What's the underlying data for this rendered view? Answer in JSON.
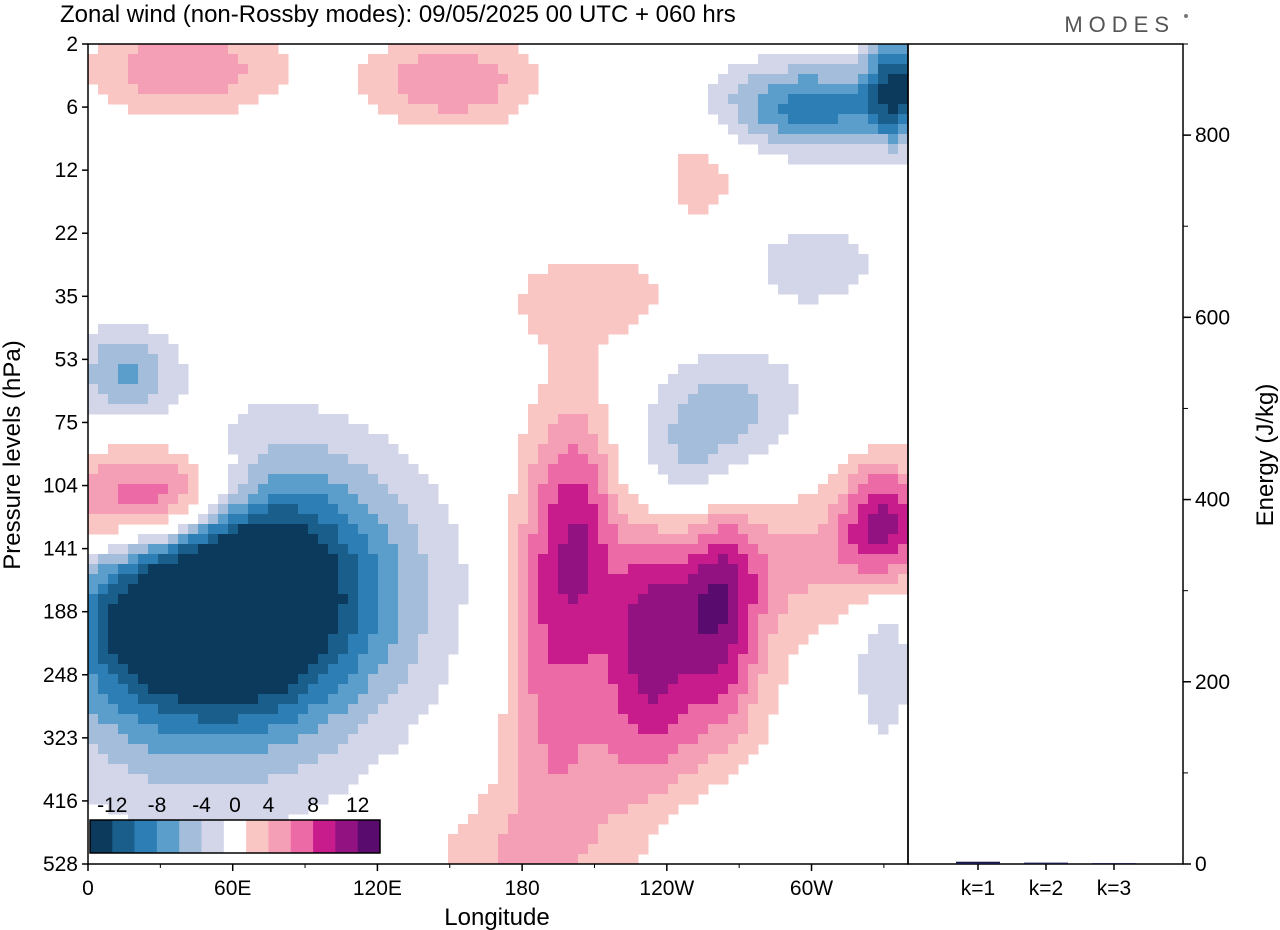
{
  "header": {
    "title": "Zonal wind (non-Rossby modes):  09/05/2025  00 UTC  + 060 hrs",
    "logo": "MODES"
  },
  "chart_data": [
    {
      "type": "heatmap",
      "title": "Zonal wind (non-Rossby modes):  09/05/2025  00 UTC  + 060 hrs",
      "xlabel": "Longitude",
      "ylabel": "Pressure levels (hPa)",
      "x_ticks": [
        "0",
        "60E",
        "120E",
        "180",
        "120W",
        "60W"
      ],
      "x_tick_lon": [
        0,
        60,
        120,
        180,
        240,
        300
      ],
      "xlim": [
        0,
        340
      ],
      "y_ticks": [
        "2",
        "6",
        "12",
        "22",
        "35",
        "53",
        "75",
        "104",
        "141",
        "188",
        "248",
        "323",
        "416",
        "528"
      ],
      "y_scale": "model levels (pressure decreasing upward)",
      "colorbar": {
        "tick_labels": [
          "-12",
          "-8",
          "-4",
          "0",
          "4",
          "8",
          "12"
        ],
        "tick_values": [
          -12,
          -8,
          -4,
          0,
          4,
          8,
          12
        ],
        "boundaries": [
          -14,
          -12,
          -10,
          -8,
          -6,
          -4,
          -2,
          2,
          4,
          6,
          8,
          10,
          12,
          14
        ],
        "colors": [
          "#0b3a5c",
          "#1a5f8c",
          "#2e7eb6",
          "#5b9dcb",
          "#a3bddb",
          "#d3d6e8",
          "#ffffff",
          "#f9c6c3",
          "#f59fb6",
          "#ec6aa6",
          "#c81b8c",
          "#921282",
          "#5a0b6e"
        ]
      },
      "fields": [
        {
          "lon": 80,
          "level": 8.6,
          "value": -12,
          "sx": 40,
          "sy": 1.5
        },
        {
          "lon": 60,
          "level": 8.8,
          "value": -10,
          "sx": 22,
          "sy": 1.0
        },
        {
          "lon": 20,
          "level": 9.0,
          "value": -8,
          "sx": 25,
          "sy": 1.2
        },
        {
          "lon": 45,
          "level": 10.2,
          "value": -4,
          "sx": 45,
          "sy": 1.8
        },
        {
          "lon": 15,
          "level": 5.2,
          "value": -6,
          "sx": 15,
          "sy": 0.5
        },
        {
          "lon": 15,
          "level": 7.4,
          "value": 9,
          "sx": 30,
          "sy": 0.7
        },
        {
          "lon": 40,
          "level": 7.2,
          "value": 7,
          "sx": 20,
          "sy": 0.6
        },
        {
          "lon": 205,
          "level": 7.8,
          "value": 8,
          "sx": 10,
          "sy": 1.5
        },
        {
          "lon": 188,
          "level": 8.5,
          "value": 6,
          "sx": 10,
          "sy": 1.8
        },
        {
          "lon": 198,
          "level": 11.5,
          "value": 4,
          "sx": 20,
          "sy": 1.5
        },
        {
          "lon": 232,
          "level": 9.2,
          "value": 7,
          "sx": 12,
          "sy": 1.5
        },
        {
          "lon": 262,
          "level": 8.8,
          "value": 8,
          "sx": 12,
          "sy": 1.2
        },
        {
          "lon": 248,
          "level": 10.0,
          "value": 5,
          "sx": 25,
          "sy": 2.0
        },
        {
          "lon": 330,
          "level": 7.6,
          "value": 10,
          "sx": 12,
          "sy": 0.7
        },
        {
          "lon": 305,
          "level": 8.2,
          "value": 4,
          "sx": 30,
          "sy": 0.8
        },
        {
          "lon": 248,
          "level": 6.8,
          "value": -6,
          "sx": 18,
          "sy": 0.9
        },
        {
          "lon": 270,
          "level": 5.7,
          "value": -4,
          "sx": 20,
          "sy": 0.7
        },
        {
          "lon": 300,
          "level": 1.0,
          "value": -9,
          "sx": 30,
          "sy": 0.5
        },
        {
          "lon": 335,
          "level": 0.6,
          "value": -10,
          "sx": 8,
          "sy": 0.6
        },
        {
          "lon": 150,
          "level": 0.6,
          "value": 6,
          "sx": 25,
          "sy": 0.5
        },
        {
          "lon": 40,
          "level": 0.4,
          "value": 6,
          "sx": 28,
          "sy": 0.5
        },
        {
          "lon": 210,
          "level": 4.0,
          "value": 3,
          "sx": 30,
          "sy": 0.6
        },
        {
          "lon": 300,
          "level": 3.5,
          "value": -3,
          "sx": 25,
          "sy": 0.6
        },
        {
          "lon": 170,
          "level": 13.0,
          "value": 3,
          "sx": 25,
          "sy": 0.8
        },
        {
          "lon": 270,
          "level": 12.6,
          "value": -3,
          "sx": 25,
          "sy": 0.8
        },
        {
          "lon": 255,
          "level": 2.0,
          "value": 3,
          "sx": 15,
          "sy": 0.8
        },
        {
          "lon": 330,
          "level": 9.5,
          "value": -4,
          "sx": 10,
          "sy": 1.2
        }
      ]
    },
    {
      "type": "bar",
      "ylabel": "Energy (J/kg)",
      "categories": [
        "k=1",
        "k=2",
        "k=3"
      ],
      "values": [
        2.5,
        1.5,
        1.0
      ],
      "ylim": [
        0,
        900
      ],
      "y_ticks": [
        0,
        200,
        400,
        600,
        800
      ],
      "y_minor_step": 100,
      "bar_color": "#1a1a4a"
    }
  ]
}
